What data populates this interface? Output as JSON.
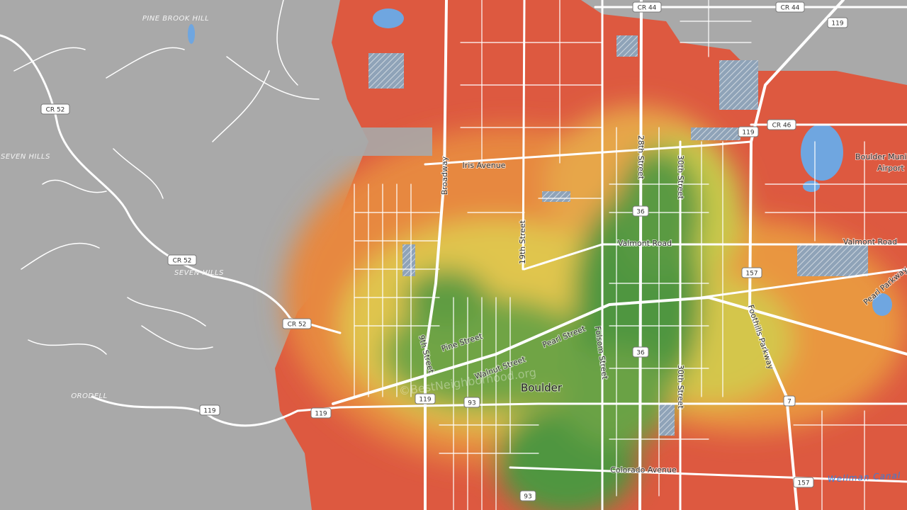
{
  "map": {
    "place_labels": [
      "PINE BROOK HILL",
      "SEVEN HILLS",
      "SEVEN HILLS",
      "ORODELL",
      "Boulder",
      "Boulder Muni",
      "Airport"
    ],
    "street_labels": [
      "Iris Avenue",
      "Broadway",
      "19th Street",
      "28th Street",
      "30th Street",
      "Valmont Road",
      "Valmont Road",
      "Pearl Parkway",
      "Foothills Parkway",
      "Pine Street",
      "Pearl Street",
      "9th Street",
      "Walnut Street",
      "Folsom Street",
      "30th Street",
      "Colorado Avenue"
    ],
    "water_labels": [
      "Wellman Canal"
    ],
    "shields": [
      "CR 44",
      "CR 44",
      "119",
      "CR 46",
      "119",
      "CR 52",
      "CR 52",
      "CR 52",
      "36",
      "157",
      "36",
      "7",
      "119",
      "119",
      "119",
      "93",
      "93",
      "157"
    ],
    "watermark": "©BestNeighborhood.org"
  }
}
